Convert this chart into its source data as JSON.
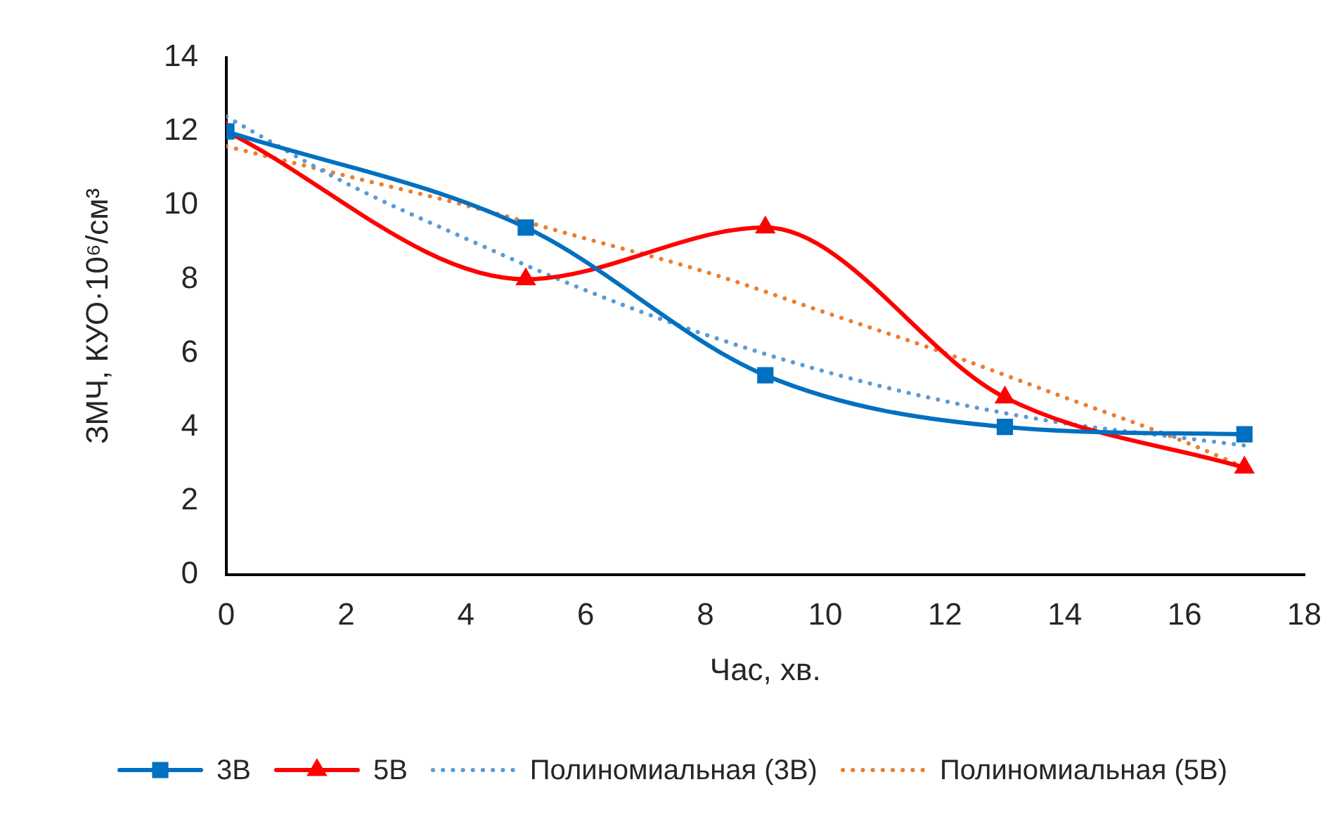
{
  "chart_data": {
    "type": "line",
    "xlabel": "Час, хв.",
    "ylabel": "ЗМЧ, КУО·10⁶/см³",
    "xlim": [
      0,
      18
    ],
    "xticks": [
      0,
      2,
      4,
      6,
      8,
      10,
      12,
      14,
      16,
      18
    ],
    "ylim": [
      0,
      14
    ],
    "yticks": [
      0,
      2,
      4,
      6,
      8,
      10,
      12,
      14
    ],
    "x": [
      0,
      5,
      9,
      13,
      17
    ],
    "series": [
      {
        "name": "3В",
        "color": "#0070c0",
        "marker": "square",
        "values": [
          12,
          9.4,
          5.4,
          4,
          3.8
        ]
      },
      {
        "name": "5В",
        "color": "#ff0000",
        "marker": "triangle",
        "values": [
          12,
          8,
          9.4,
          4.8,
          2.9
        ]
      },
      {
        "name": "Полиномиальная (3В)",
        "type": "line",
        "color": "#5b9bd5",
        "line_style": "dotted",
        "marker": "none",
        "x": [
          0,
          2,
          4,
          6,
          8,
          10,
          12,
          14,
          16,
          17
        ],
        "values": [
          12.4,
          10.6,
          9.1,
          7.7,
          6.5,
          5.5,
          4.7,
          4.1,
          3.7,
          3.5
        ]
      },
      {
        "name": "Полиномиальная (5В)",
        "type": "line",
        "color": "#ed7d31",
        "line_style": "dotted",
        "marker": "none",
        "x": [
          0,
          2,
          4,
          6,
          8,
          10,
          12,
          14,
          16,
          17
        ],
        "values": [
          11.6,
          10.8,
          10.0,
          9.1,
          8.2,
          7.1,
          6.0,
          4.8,
          3.6,
          2.9
        ]
      }
    ],
    "legend": "bottom"
  }
}
